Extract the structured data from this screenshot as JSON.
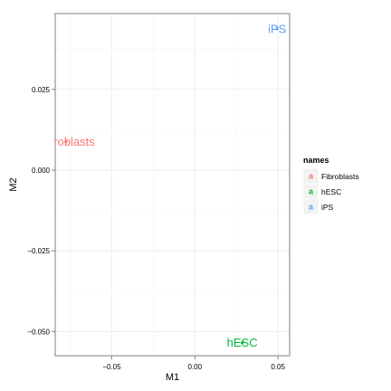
{
  "chart_data": {
    "type": "scatter",
    "xlabel": "M1",
    "ylabel": "M2",
    "xlim": [
      -0.084,
      0.057
    ],
    "ylim": [
      -0.0575,
      0.0485
    ],
    "x_ticks": [
      {
        "value": -0.05,
        "label": "−0.05"
      },
      {
        "value": 0.0,
        "label": "0.00"
      },
      {
        "value": 0.05,
        "label": "0.05"
      }
    ],
    "y_ticks": [
      {
        "value": 0.025,
        "label": "0.025"
      },
      {
        "value": 0.0,
        "label": "0.000"
      },
      {
        "value": -0.025,
        "label": "−0.025"
      },
      {
        "value": -0.05,
        "label": "−0.050"
      }
    ],
    "grid": true,
    "legend": {
      "title": "names",
      "position": "right",
      "entries": [
        {
          "name": "Fibroblasts",
          "color": "#F8766D"
        },
        {
          "name": "hESC",
          "color": "#00BA38"
        },
        {
          "name": "iPS",
          "color": "#619CFF"
        }
      ]
    },
    "points": [
      {
        "name": "Fibroblasts",
        "label": "Fibroblasts",
        "x": -0.0775,
        "y": 0.0088,
        "color": "#F8766D"
      },
      {
        "name": "hESC",
        "label": "hESC",
        "x": 0.0285,
        "y": -0.0535,
        "color": "#00BA38"
      },
      {
        "name": "iPS",
        "label": "iPS",
        "x": 0.0495,
        "y": 0.0438,
        "color": "#619CFF"
      }
    ]
  }
}
